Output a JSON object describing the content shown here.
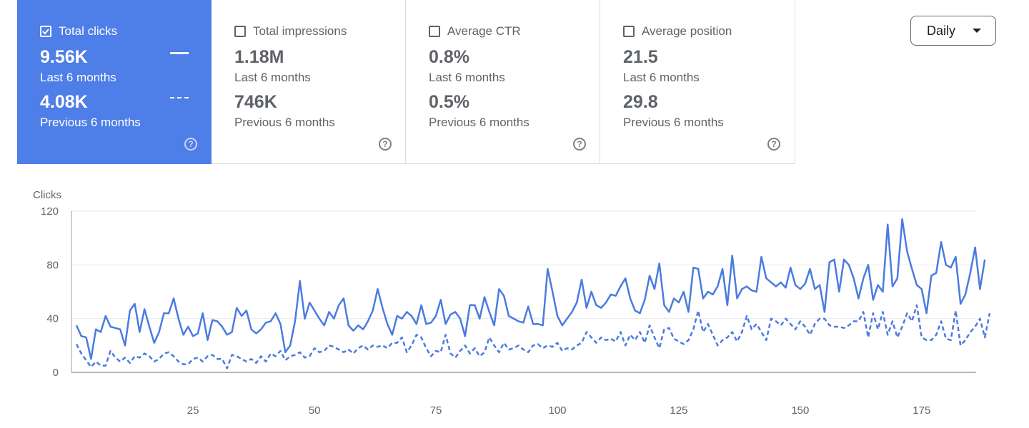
{
  "cards": [
    {
      "title": "Total clicks",
      "checked": true,
      "value_current": "9.56K",
      "label_current": "Last 6 months",
      "value_previous": "4.08K",
      "label_previous": "Previous 6 months",
      "help": "?"
    },
    {
      "title": "Total impressions",
      "checked": false,
      "value_current": "1.18M",
      "label_current": "Last 6 months",
      "value_previous": "746K",
      "label_previous": "Previous 6 months",
      "help": "?"
    },
    {
      "title": "Average CTR",
      "checked": false,
      "value_current": "0.8%",
      "label_current": "Last 6 months",
      "value_previous": "0.5%",
      "label_previous": "Previous 6 months",
      "help": "?"
    },
    {
      "title": "Average position",
      "checked": false,
      "value_current": "21.5",
      "label_current": "Last 6 months",
      "value_previous": "29.8",
      "label_previous": "Previous 6 months",
      "help": "?"
    }
  ],
  "granularity": {
    "selected": "Daily",
    "icon": "caret-down-icon"
  },
  "colors": {
    "accent": "#4e7ee7",
    "series": "#4a7be0"
  },
  "chart_data": {
    "type": "line",
    "ylabel": "Clicks",
    "ylim": [
      0,
      120
    ],
    "yticks": [
      0,
      40,
      80,
      120
    ],
    "xlim": [
      1,
      184
    ],
    "xticks": [
      25,
      50,
      75,
      100,
      125,
      150,
      175
    ],
    "grid": true,
    "series": [
      {
        "style": "solid",
        "values": [
          35,
          27,
          26,
          10,
          32,
          30,
          42,
          34,
          33,
          32,
          20,
          46,
          51,
          30,
          47,
          34,
          22,
          30,
          44,
          44,
          55,
          40,
          28,
          34,
          27,
          29,
          44,
          24,
          39,
          38,
          34,
          28,
          30,
          48,
          42,
          46,
          32,
          29,
          32,
          37,
          38,
          44,
          36,
          15,
          20,
          38,
          68,
          40,
          52,
          46,
          40,
          35,
          45,
          40,
          50,
          55,
          35,
          31,
          35,
          32,
          38,
          46,
          62,
          48,
          36,
          28,
          42,
          40,
          45,
          42,
          36,
          50,
          36,
          37,
          42,
          54,
          36,
          43,
          45,
          40,
          27,
          50,
          50,
          40,
          56,
          45,
          35,
          62,
          57,
          42,
          40,
          38,
          37,
          49,
          36,
          36,
          35,
          77,
          60,
          42,
          35,
          40,
          45,
          52,
          69,
          48,
          60,
          50,
          48,
          52,
          58,
          57,
          64,
          70,
          55,
          46,
          44,
          54,
          72,
          62,
          81,
          50,
          45,
          55,
          52,
          60,
          45,
          78,
          77,
          55,
          60,
          58,
          64,
          77,
          50,
          87,
          55,
          62,
          64,
          61,
          60,
          86,
          70,
          67,
          64,
          67,
          63,
          78,
          65,
          62,
          66,
          77,
          62,
          65,
          45,
          82,
          84,
          60,
          84,
          80,
          70,
          55,
          70,
          80,
          54,
          65,
          60,
          110,
          64,
          70,
          114,
          90,
          77,
          65,
          62,
          44,
          72,
          74,
          97,
          80,
          78,
          86,
          51,
          58,
          74,
          93,
          62,
          84
        ],
        "x_start": 1
      },
      {
        "style": "dashed",
        "values": [
          21,
          14,
          9,
          4,
          8,
          5,
          5,
          16,
          11,
          8,
          11,
          7,
          12,
          11,
          14,
          12,
          8,
          10,
          14,
          15,
          12,
          8,
          6,
          6,
          10,
          11,
          8,
          12,
          13,
          10,
          10,
          3,
          13,
          12,
          10,
          8,
          10,
          7,
          12,
          8,
          14,
          12,
          16,
          9,
          12,
          13,
          15,
          11,
          12,
          18,
          15,
          16,
          20,
          19,
          17,
          15,
          17,
          14,
          18,
          20,
          17,
          20,
          19,
          20,
          18,
          22,
          22,
          26,
          15,
          20,
          28,
          26,
          18,
          12,
          16,
          15,
          28,
          14,
          11,
          16,
          20,
          14,
          18,
          12,
          15,
          26,
          20,
          15,
          22,
          17,
          18,
          20,
          17,
          15,
          20,
          21,
          18,
          20,
          19,
          22,
          16,
          18,
          17,
          20,
          22,
          30,
          26,
          22,
          26,
          24,
          25,
          23,
          30,
          20,
          28,
          24,
          30,
          22,
          35,
          26,
          18,
          32,
          33,
          25,
          23,
          21,
          24,
          32,
          46,
          30,
          36,
          28,
          20,
          24,
          26,
          30,
          23,
          30,
          42,
          32,
          36,
          30,
          24,
          40,
          38,
          35,
          40,
          36,
          32,
          38,
          34,
          28,
          36,
          40,
          40,
          35,
          34,
          34,
          33,
          35,
          38,
          38,
          45,
          26,
          44,
          32,
          45,
          28,
          38,
          26,
          34,
          44,
          38,
          50,
          26,
          24,
          24,
          28,
          38,
          25,
          24,
          46,
          20,
          24,
          30,
          34,
          40,
          26,
          44
        ],
        "x_start": 1
      }
    ]
  }
}
